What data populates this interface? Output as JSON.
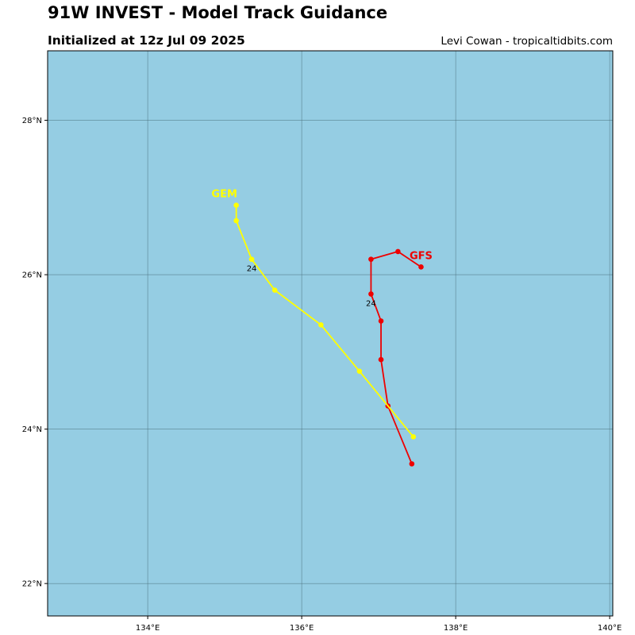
{
  "header": {
    "title": "91W INVEST - Model Track Guidance",
    "subtitle": "Initialized at 12z Jul 09 2025",
    "credit": "Levi Cowan - tropicaltidbits.com"
  },
  "map": {
    "ocean_color": "#95cde3",
    "grid_color": "#4a6e7a",
    "lon_range": [
      132.7,
      140.04
    ],
    "lat_range": [
      21.58,
      28.9
    ],
    "lon_ticks": [
      {
        "value": 134,
        "label": "134°E"
      },
      {
        "value": 136,
        "label": "136°E"
      },
      {
        "value": 138,
        "label": "138°E"
      },
      {
        "value": 140,
        "label": "140°E"
      }
    ],
    "lat_ticks": [
      {
        "value": 22,
        "label": "22°N"
      },
      {
        "value": 24,
        "label": "24°N"
      },
      {
        "value": 26,
        "label": "26°N"
      },
      {
        "value": 28,
        "label": "28°N"
      }
    ],
    "tracks": [
      {
        "name": "GFS",
        "color": "#ee0000",
        "points": [
          [
            137.43,
            23.55
          ],
          [
            137.12,
            24.3
          ],
          [
            137.03,
            24.9
          ],
          [
            137.03,
            25.4
          ],
          [
            136.9,
            25.75
          ],
          [
            136.9,
            26.2
          ],
          [
            137.25,
            26.3
          ],
          [
            137.55,
            26.1
          ]
        ],
        "hour_labels": [
          {
            "point_index": 4,
            "text": "24"
          }
        ]
      },
      {
        "name": "GEM",
        "color": "#ffff00",
        "points": [
          [
            137.45,
            23.9
          ],
          [
            136.75,
            24.75
          ],
          [
            136.25,
            25.35
          ],
          [
            135.65,
            25.8
          ],
          [
            135.35,
            26.2
          ],
          [
            135.15,
            26.7
          ],
          [
            135.15,
            26.9
          ]
        ],
        "hour_labels": [
          {
            "point_index": 4,
            "text": "24"
          }
        ]
      }
    ]
  }
}
